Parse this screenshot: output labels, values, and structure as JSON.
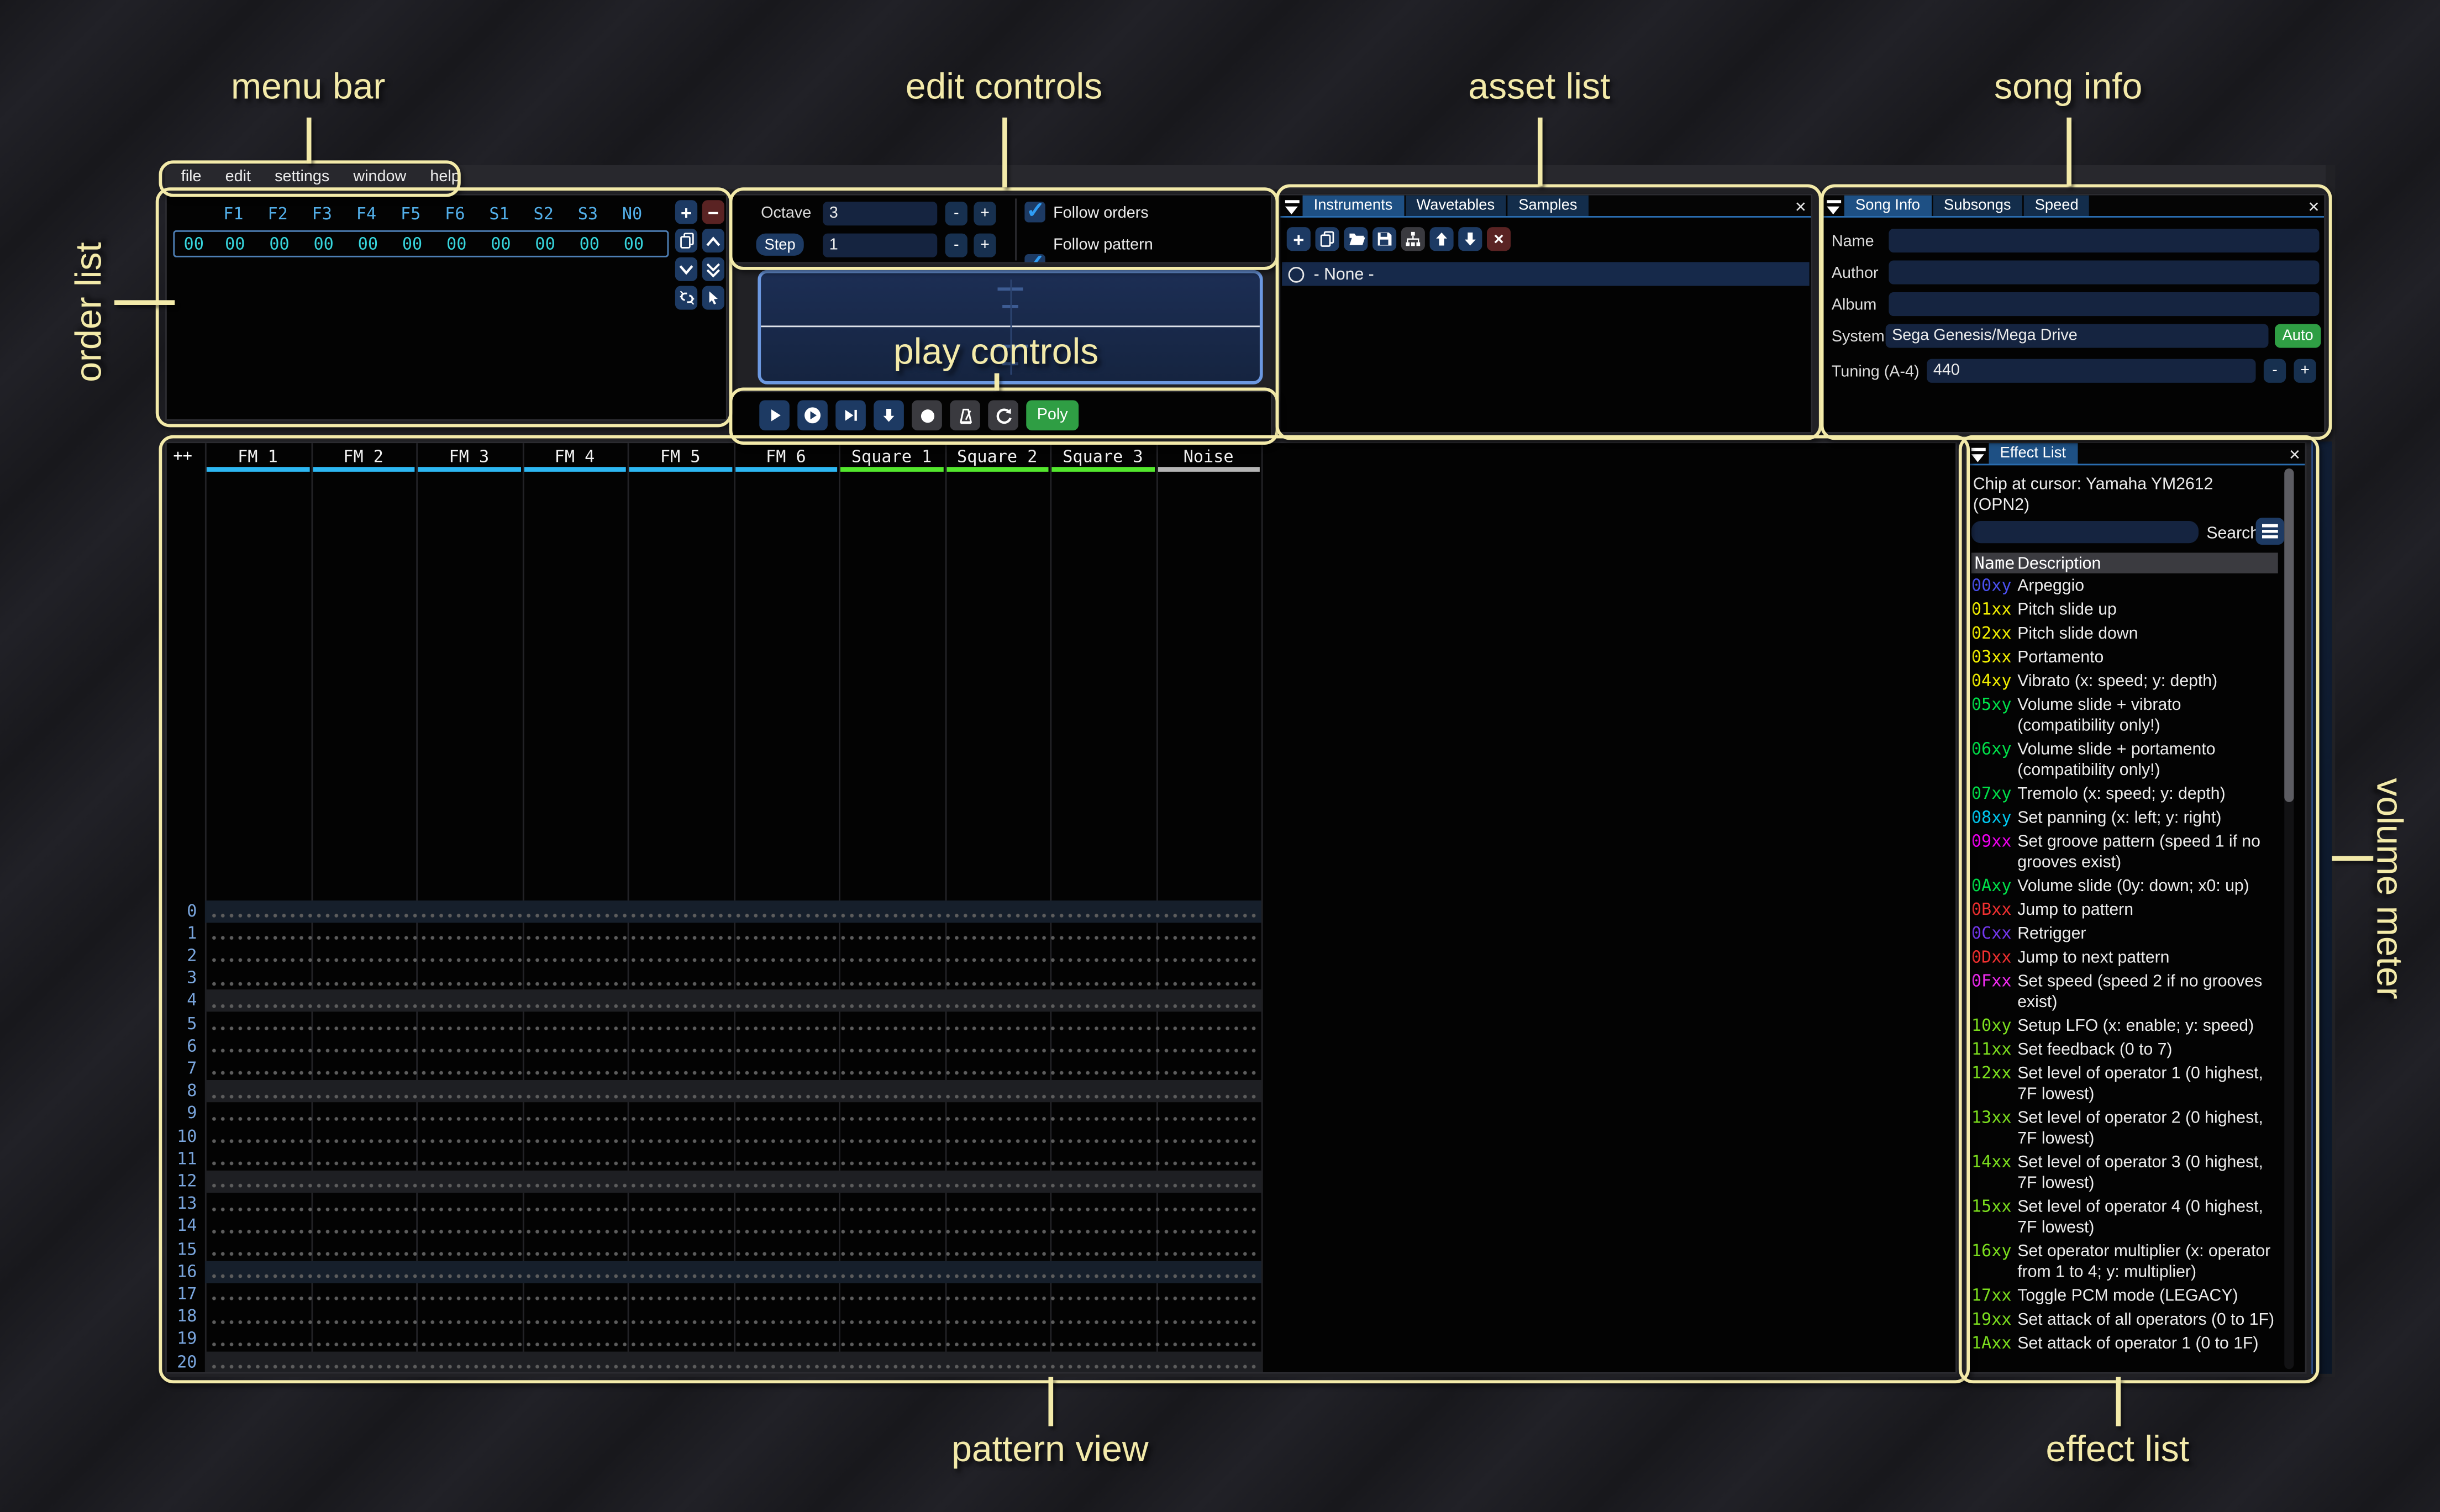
{
  "annotations": {
    "menu_bar": "menu bar",
    "edit_controls": "edit controls",
    "asset_list": "asset list",
    "song_info": "song info",
    "order_list": "order list",
    "play_controls": "play controls",
    "pattern_view": "pattern view",
    "effect_list": "effect list",
    "volume_meter": "volume meter"
  },
  "icons": {
    "plus": "+",
    "minus": "−",
    "small_minus": "-",
    "small_plus": "+",
    "up_arrow": "↑",
    "down_arrow": "↓",
    "close": "×",
    "check": "✓"
  },
  "menu": {
    "items": [
      "file",
      "edit",
      "settings",
      "window",
      "help"
    ]
  },
  "order_list": {
    "channel_headers": [
      "F1",
      "F2",
      "F3",
      "F4",
      "F5",
      "F6",
      "S1",
      "S2",
      "S3",
      "N0"
    ],
    "row_index": "00",
    "row_values": [
      "00",
      "00",
      "00",
      "00",
      "00",
      "00",
      "00",
      "00",
      "00",
      "00"
    ]
  },
  "edit_controls": {
    "octave_label": "Octave",
    "octave_value": "3",
    "step_label": "Step",
    "step_value": "1",
    "follow_orders": "Follow orders",
    "follow_pattern": "Follow pattern"
  },
  "play_controls": {
    "poly_label": "Poly"
  },
  "asset_list": {
    "tabs": [
      {
        "label": "Instruments",
        "active": true
      },
      {
        "label": "Wavetables",
        "active": false
      },
      {
        "label": "Samples",
        "active": false
      }
    ],
    "selected_item": "- None -"
  },
  "song_info": {
    "tabs": [
      {
        "label": "Song Info",
        "active": true
      },
      {
        "label": "Subsongs",
        "active": false
      },
      {
        "label": "Speed",
        "active": false
      }
    ],
    "name_label": "Name",
    "name_value": "",
    "author_label": "Author",
    "author_value": "",
    "album_label": "Album",
    "album_value": "",
    "system_label": "System",
    "system_value": "Sega Genesis/Mega Drive",
    "auto_label": "Auto",
    "tuning_label": "Tuning (A-4)",
    "tuning_value": "440"
  },
  "pattern_view": {
    "corner": "++",
    "channels": [
      {
        "name": "FM 1",
        "color": "#2db7f2"
      },
      {
        "name": "FM 2",
        "color": "#2db7f2"
      },
      {
        "name": "FM 3",
        "color": "#2db7f2"
      },
      {
        "name": "FM 4",
        "color": "#2db7f2"
      },
      {
        "name": "FM 5",
        "color": "#2db7f2"
      },
      {
        "name": "FM 6",
        "color": "#2db7f2"
      },
      {
        "name": "Square 1",
        "color": "#53e62d"
      },
      {
        "name": "Square 2",
        "color": "#53e62d"
      },
      {
        "name": "Square 3",
        "color": "#53e62d"
      },
      {
        "name": "Noise",
        "color": "#b4b4b4"
      }
    ],
    "row_numbers": [
      "0",
      "1",
      "2",
      "3",
      "4",
      "5",
      "6",
      "7",
      "8",
      "9",
      "10",
      "11",
      "12",
      "13",
      "14",
      "15",
      "16",
      "17",
      "18",
      "19",
      "20"
    ],
    "strong_highlight_rows": [
      0,
      16
    ],
    "weak_highlight_rows": [
      4,
      8,
      12,
      20
    ]
  },
  "effect_list": {
    "tab_label": "Effect List",
    "chip_text": "Chip at cursor: Yamaha YM2612 (OPN2)",
    "search_value": "",
    "search_label": "Search",
    "header_name": "Name",
    "header_description": "Description",
    "effects": [
      {
        "code": "00xy",
        "color": "#4b50f0",
        "desc": "Arpeggio"
      },
      {
        "code": "01xx",
        "color": "#f2ef00",
        "desc": "Pitch slide up"
      },
      {
        "code": "02xx",
        "color": "#f2ef00",
        "desc": "Pitch slide down"
      },
      {
        "code": "03xx",
        "color": "#f2ef00",
        "desc": "Portamento"
      },
      {
        "code": "04xy",
        "color": "#f2ef00",
        "desc": "Vibrato (x: speed; y: depth)"
      },
      {
        "code": "05xy",
        "color": "#00e049",
        "desc": "Volume slide + vibrato (compatibility only!)"
      },
      {
        "code": "06xy",
        "color": "#00e049",
        "desc": "Volume slide + portamento (compatibility only!)"
      },
      {
        "code": "07xy",
        "color": "#00e049",
        "desc": "Tremolo (x: speed; y: depth)"
      },
      {
        "code": "08xy",
        "color": "#00c8f0",
        "desc": "Set panning (x: left; y: right)"
      },
      {
        "code": "09xx",
        "color": "#f000f0",
        "desc": "Set groove pattern (speed 1 if no grooves exist)"
      },
      {
        "code": "0Axy",
        "color": "#00e049",
        "desc": "Volume slide (0y: down; x0: up)"
      },
      {
        "code": "0Bxx",
        "color": "#f03030",
        "desc": "Jump to pattern"
      },
      {
        "code": "0Cxx",
        "color": "#7438f0",
        "desc": "Retrigger"
      },
      {
        "code": "0Dxx",
        "color": "#f03030",
        "desc": "Jump to next pattern"
      },
      {
        "code": "0Fxx",
        "color": "#f02bf0",
        "desc": "Set speed (speed 2 if no grooves exist)"
      },
      {
        "code": "10xy",
        "color": "#7cdf1e",
        "desc": "Setup LFO (x: enable; y: speed)"
      },
      {
        "code": "11xx",
        "color": "#7cdf1e",
        "desc": "Set feedback (0 to 7)"
      },
      {
        "code": "12xx",
        "color": "#7cdf1e",
        "desc": "Set level of operator 1 (0 highest, 7F lowest)"
      },
      {
        "code": "13xx",
        "color": "#7cdf1e",
        "desc": "Set level of operator 2 (0 highest, 7F lowest)"
      },
      {
        "code": "14xx",
        "color": "#7cdf1e",
        "desc": "Set level of operator 3 (0 highest, 7F lowest)"
      },
      {
        "code": "15xx",
        "color": "#7cdf1e",
        "desc": "Set level of operator 4 (0 highest, 7F lowest)"
      },
      {
        "code": "16xy",
        "color": "#7cdf1e",
        "desc": "Set operator multiplier (x: operator from 1 to 4; y: multiplier)"
      },
      {
        "code": "17xx",
        "color": "#7cdf1e",
        "desc": "Toggle PCM mode (LEGACY)"
      },
      {
        "code": "19xx",
        "color": "#7cdf1e",
        "desc": "Set attack of all operators (0 to 1F)"
      },
      {
        "code": "1Axx",
        "color": "#7cdf1e",
        "desc": "Set attack of operator 1 (0 to 1F)"
      }
    ]
  },
  "colors": {
    "accent_yellow": "#f3eaa9",
    "tab_active": "#1e5084",
    "tab_inactive": "#132d4b",
    "order_header_text": "#52aee8",
    "order_value_text": "#37d6de"
  }
}
